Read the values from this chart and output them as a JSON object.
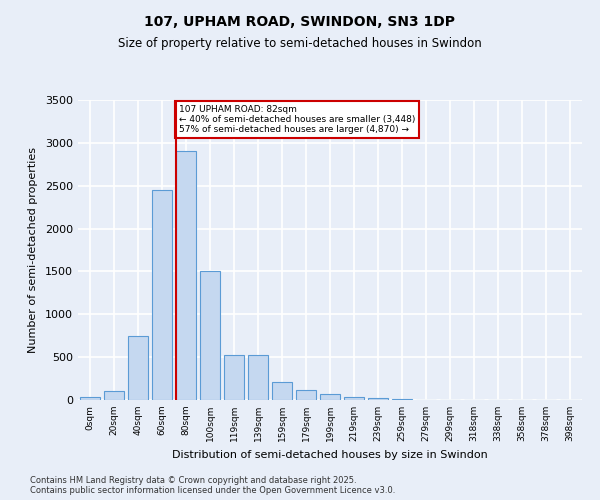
{
  "title": "107, UPHAM ROAD, SWINDON, SN3 1DP",
  "subtitle": "Size of property relative to semi-detached houses in Swindon",
  "xlabel": "Distribution of semi-detached houses by size in Swindon",
  "ylabel": "Number of semi-detached properties",
  "footer": "Contains HM Land Registry data © Crown copyright and database right 2025.\nContains public sector information licensed under the Open Government Licence v3.0.",
  "bins": [
    "0sqm",
    "20sqm",
    "40sqm",
    "60sqm",
    "80sqm",
    "100sqm",
    "119sqm",
    "139sqm",
    "159sqm",
    "179sqm",
    "199sqm",
    "219sqm",
    "239sqm",
    "259sqm",
    "279sqm",
    "299sqm",
    "318sqm",
    "338sqm",
    "358sqm",
    "378sqm",
    "398sqm"
  ],
  "values": [
    30,
    110,
    750,
    2450,
    2900,
    1500,
    530,
    530,
    210,
    120,
    70,
    40,
    20,
    10,
    5,
    3,
    2,
    0,
    0,
    0,
    0
  ],
  "bar_color": "#c5d8f0",
  "bar_edge_color": "#5b9bd5",
  "property_bin_index": 4,
  "vline_color": "#cc0000",
  "annotation_text": "107 UPHAM ROAD: 82sqm\n← 40% of semi-detached houses are smaller (3,448)\n57% of semi-detached houses are larger (4,870) →",
  "annotation_box_facecolor": "#ffffff",
  "annotation_box_edgecolor": "#cc0000",
  "ylim": [
    0,
    3500
  ],
  "yticks": [
    0,
    500,
    1000,
    1500,
    2000,
    2500,
    3000,
    3500
  ],
  "background_color": "#e8eef8",
  "grid_color": "#ffffff"
}
